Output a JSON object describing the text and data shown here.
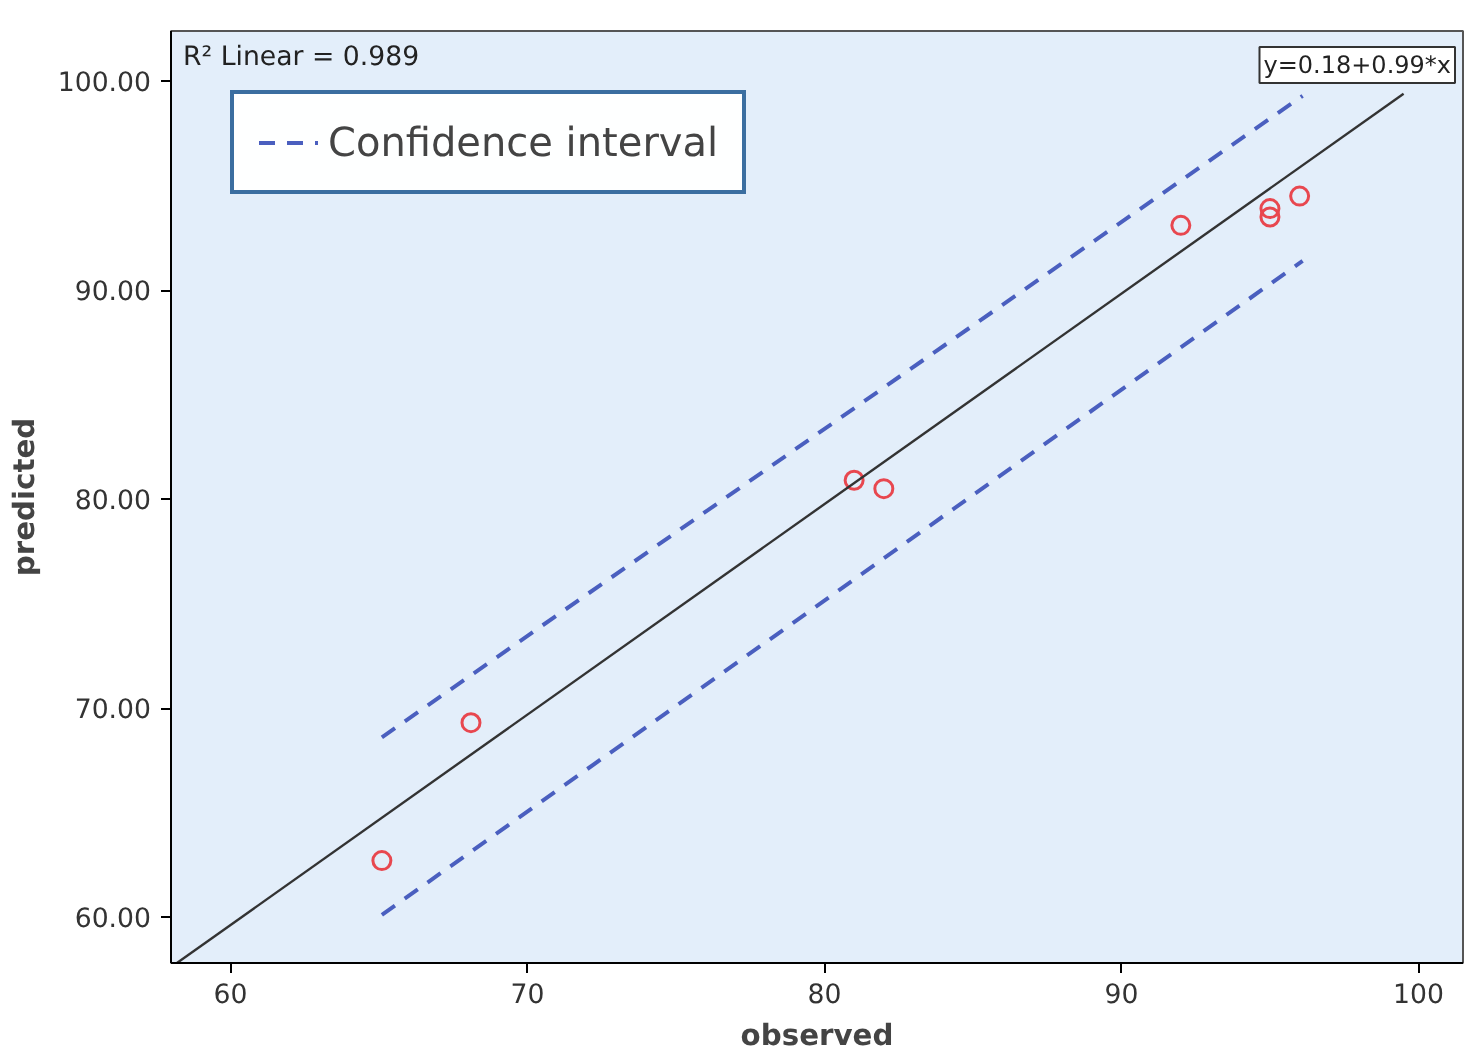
{
  "chart_data": {
    "type": "scatter",
    "xlabel": "observed",
    "ylabel": "predicted",
    "xlim": [
      58,
      101.5
    ],
    "ylim": [
      57.8,
      102.4
    ],
    "xticks": [
      60,
      70,
      80,
      90,
      100
    ],
    "yticks": [
      {
        "value": 60,
        "label": "60.00"
      },
      {
        "value": 70,
        "label": "70.00"
      },
      {
        "value": 80,
        "label": "80.00"
      },
      {
        "value": 90,
        "label": "90.00"
      },
      {
        "value": 100,
        "label": "100.00"
      }
    ],
    "grid": false,
    "legend": "top left",
    "marker": "circle",
    "annotations": [
      "R² Linear = 0.989",
      "y=0.18+0.99*x"
    ],
    "series": [
      {
        "color": "#e8474f",
        "x": [
          65.1,
          68.1,
          81.0,
          82.0,
          92.0,
          95.0,
          95.0,
          96.0
        ],
        "values": [
          62.7,
          69.3,
          80.9,
          80.5,
          93.1,
          93.9,
          93.5,
          94.5
        ]
      },
      {
        "type": "line",
        "color": "#333333",
        "line_style": "solid",
        "marker": "none",
        "x": [
          58.2,
          99.5
        ],
        "values": [
          57.8,
          99.4
        ]
      },
      {
        "type": "line",
        "name": "Confidence interval",
        "color": "#4a5fbf",
        "line_style": "dashed",
        "marker": "none",
        "x": [
          65.1,
          96.1
        ],
        "values": [
          68.6,
          99.3
        ]
      },
      {
        "type": "line",
        "color": "#4a5fbf",
        "line_style": "dashed",
        "marker": "none",
        "x": [
          65.1,
          96.1
        ],
        "values": [
          60.1,
          91.4
        ]
      }
    ]
  }
}
